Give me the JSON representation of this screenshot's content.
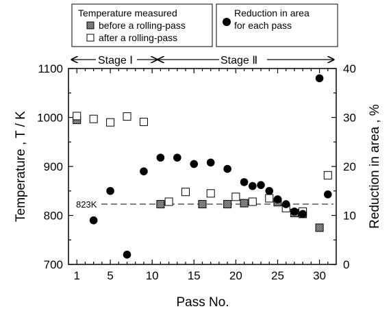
{
  "chart_data": {
    "type": "scatter",
    "xlabel": "Pass No.",
    "ylabel_left": "Temperature , T / K",
    "ylabel_right": "Reduction in area , %",
    "xlim": [
      0,
      32
    ],
    "ylim_left": [
      700,
      1100
    ],
    "ylim_right": [
      0,
      40
    ],
    "x_ticks": [
      1,
      5,
      10,
      15,
      20,
      25,
      30
    ],
    "y_left_ticks": [
      700,
      800,
      900,
      1000,
      1100
    ],
    "y_right_ticks": [
      0,
      10,
      20,
      30,
      40
    ],
    "reference_line": {
      "axis": "left",
      "value": 823,
      "label": "823K",
      "style": "dashed"
    },
    "stages": [
      {
        "label": "Stage Ⅰ",
        "from": 0,
        "to": 10.5
      },
      {
        "label": "Stage Ⅱ",
        "from": 10.5,
        "to": 32
      }
    ],
    "legend": {
      "temperature_title": "Temperature measured",
      "temperature_items": [
        "before a rolling-pass",
        "after a rolling-pass"
      ],
      "reduction_label_lines": [
        "Reduction in area",
        "for each pass"
      ]
    },
    "series": [
      {
        "name": "before a rolling-pass",
        "axis": "left",
        "marker": "hatched-square",
        "points": [
          [
            1,
            995
          ],
          [
            11,
            823
          ],
          [
            16,
            823
          ],
          [
            19,
            823
          ],
          [
            21,
            825
          ],
          [
            25,
            827
          ],
          [
            27,
            805
          ],
          [
            28,
            803
          ],
          [
            30,
            775
          ]
        ]
      },
      {
        "name": "after a rolling-pass",
        "axis": "left",
        "marker": "open-square",
        "points": [
          [
            1,
            1003
          ],
          [
            3,
            997
          ],
          [
            5,
            990
          ],
          [
            7,
            1002
          ],
          [
            9,
            991
          ],
          [
            12,
            828
          ],
          [
            14,
            848
          ],
          [
            17,
            845
          ],
          [
            20,
            838
          ],
          [
            22,
            828
          ],
          [
            24,
            835
          ],
          [
            26,
            815
          ],
          [
            28,
            808
          ],
          [
            31,
            882
          ]
        ]
      },
      {
        "name": "Reduction in area for each pass",
        "axis": "right",
        "marker": "filled-circle",
        "points": [
          [
            3,
            9
          ],
          [
            5,
            15
          ],
          [
            7,
            2
          ],
          [
            9,
            19
          ],
          [
            11,
            21.8
          ],
          [
            13,
            21.8
          ],
          [
            15,
            20.5
          ],
          [
            17,
            20.8
          ],
          [
            19,
            19.5
          ],
          [
            21,
            16.8
          ],
          [
            22,
            16
          ],
          [
            23,
            16.2
          ],
          [
            24,
            15
          ],
          [
            25,
            13.3
          ],
          [
            26,
            12.3
          ],
          [
            27,
            10.8
          ],
          [
            28,
            10.3
          ],
          [
            30,
            38
          ],
          [
            31,
            14.3
          ]
        ]
      }
    ]
  },
  "colors": {
    "ink": "#000000",
    "hatch_fill": "#8a8a8a",
    "background": "#ffffff"
  }
}
